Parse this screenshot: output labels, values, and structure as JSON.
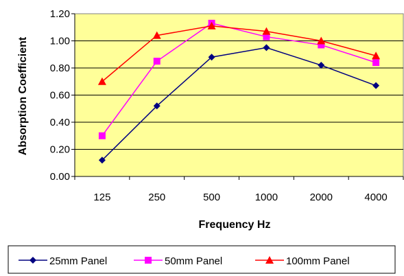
{
  "chart_data": {
    "type": "line",
    "title": "",
    "xlabel": "Frequency Hz",
    "ylabel": "Absorption Coefficient",
    "categories": [
      "125",
      "250",
      "500",
      "1000",
      "2000",
      "4000"
    ],
    "ylim": [
      0,
      1.2
    ],
    "yticks": [
      "0.00",
      "0.20",
      "0.40",
      "0.60",
      "0.80",
      "1.00",
      "1.20"
    ],
    "grid": "horizontal",
    "legend_position": "bottom",
    "plot_background": "#FFFF99",
    "series": [
      {
        "name": "25mm Panel",
        "color": "#000080",
        "marker": "diamond",
        "values": [
          0.12,
          0.52,
          0.88,
          0.95,
          0.82,
          0.67
        ]
      },
      {
        "name": "50mm Panel",
        "color": "#FF00FF",
        "marker": "square",
        "values": [
          0.3,
          0.85,
          1.13,
          1.03,
          0.97,
          0.84
        ]
      },
      {
        "name": "100mm Panel",
        "color": "#FF0000",
        "marker": "triangle",
        "values": [
          0.7,
          1.04,
          1.11,
          1.07,
          1.0,
          0.89
        ]
      }
    ]
  }
}
